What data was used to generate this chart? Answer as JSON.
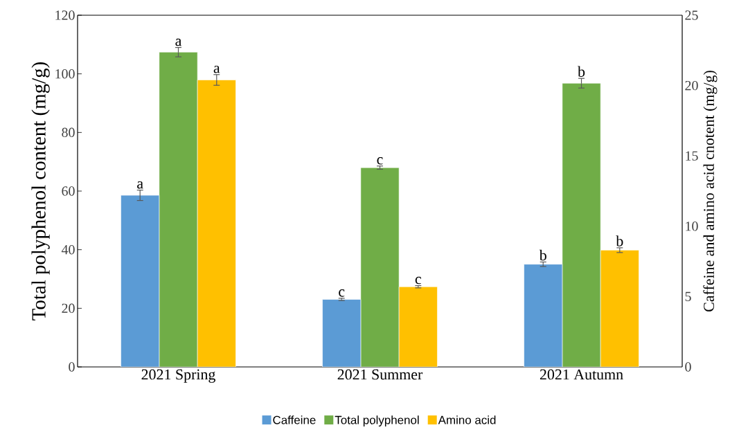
{
  "chart_data": {
    "type": "bar",
    "ylabel": "Total polyphenol content (mg/g)",
    "y2label": "Caffeine and amino acid cnotent (mg/g)",
    "categories": [
      "2021 Spring",
      "2021 Summer",
      "2021 Autumn"
    ],
    "series": [
      {
        "name": "Caffeine",
        "color": "#5b9bd5",
        "axis": "y2",
        "values": [
          12.2,
          4.8,
          7.3
        ],
        "errors": [
          0.37,
          0.08,
          0.16
        ],
        "value_labels": [
          "a",
          "c",
          "b"
        ]
      },
      {
        "name": "Total polyphenol",
        "color": "#70ad47",
        "values": [
          107.4,
          68.0,
          96.8
        ],
        "errors": [
          1.6,
          0.55,
          1.65
        ],
        "value_labels": [
          "a",
          "c",
          "b"
        ]
      },
      {
        "name": "Amino acid",
        "color": "#ffc000",
        "axis": "y2",
        "values": [
          20.4,
          5.7,
          8.3
        ],
        "errors": [
          0.38,
          0.08,
          0.17
        ],
        "value_labels": [
          "a",
          "c",
          "b"
        ]
      }
    ],
    "ylim": [
      0,
      120
    ],
    "yticks": [
      0,
      20,
      40,
      60,
      80,
      100,
      120
    ],
    "y2lim": [
      0,
      25
    ],
    "y2ticks": [
      0,
      5,
      10,
      15,
      20,
      25
    ],
    "legend": "bottom",
    "grid": false
  }
}
